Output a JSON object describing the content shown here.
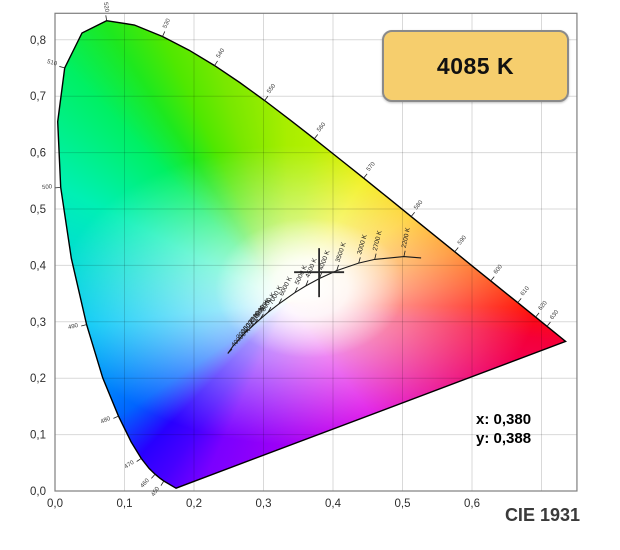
{
  "cct_box": {
    "label": "4085 K",
    "fill": "#F6CE6D",
    "border": "#8A8A8A"
  },
  "readout": {
    "x": "x: 0,380",
    "y": "y: 0,388"
  },
  "footer": {
    "title": "CIE 1931"
  },
  "colors": {
    "background": "#FFFFFF",
    "grid": "rgba(0,0,0,0.15)",
    "plot_border": "#7F7F7F",
    "axis_text": "#2E2E2E",
    "locus_outline": "#000000",
    "planckian_line": "#1A1A1A",
    "marker": "#2B2B2B",
    "gamut_conic_stops": [
      [
        0,
        "#A8EE00"
      ],
      [
        9,
        "#B4F000"
      ],
      [
        32,
        "#F0EE00"
      ],
      [
        55,
        "#FFC400"
      ],
      [
        73,
        "#FF7A00"
      ],
      [
        84,
        "#FF3C00"
      ],
      [
        91,
        "#FF1000"
      ],
      [
        98,
        "#F50038"
      ],
      [
        143,
        "#DC00E6"
      ],
      [
        205,
        "#7A00FF"
      ],
      [
        215,
        "#4600FF"
      ],
      [
        224,
        "#2800FF"
      ],
      [
        236,
        "#0064FF"
      ],
      [
        264,
        "#00C8F5"
      ],
      [
        297,
        "#00F0B4"
      ],
      [
        317,
        "#00F064"
      ],
      [
        327,
        "#1EE81E"
      ],
      [
        335,
        "#50E800"
      ],
      [
        344,
        "#78E800"
      ],
      [
        354,
        "#96EC00"
      ],
      [
        360,
        "#A8EE00"
      ]
    ]
  },
  "chart_data": {
    "type": "area",
    "subtype": "cie-1931-chromaticity-diagram",
    "title": "CIE 1931",
    "xlim": [
      0,
      0.751
    ],
    "ylim": [
      0,
      0.847
    ],
    "grid_step": 0.1,
    "x_tick_labels": [
      "0,0",
      "0,1",
      "0,2",
      "0,3",
      "0,4",
      "0,5",
      "0,6"
    ],
    "y_tick_labels": [
      "0,0",
      "0,1",
      "0,2",
      "0,3",
      "0,4",
      "0,5",
      "0,6",
      "0,7",
      "0,8"
    ],
    "x_tick_values": [
      0,
      0.1,
      0.2,
      0.3,
      0.4,
      0.5,
      0.6
    ],
    "y_tick_values": [
      0,
      0.1,
      0.2,
      0.3,
      0.4,
      0.5,
      0.6,
      0.7,
      0.8
    ],
    "marker": {
      "x": 0.38,
      "y": 0.388,
      "cct": "4085 K"
    },
    "spectral_locus": [
      [
        380,
        0.1741,
        0.005
      ],
      [
        450,
        0.1566,
        0.0177
      ],
      [
        455,
        0.151,
        0.0227
      ],
      [
        460,
        0.144,
        0.0297
      ],
      [
        465,
        0.1355,
        0.0399
      ],
      [
        470,
        0.1241,
        0.0578
      ],
      [
        475,
        0.1096,
        0.0868
      ],
      [
        480,
        0.0913,
        0.1327
      ],
      [
        485,
        0.0687,
        0.2007
      ],
      [
        490,
        0.0454,
        0.295
      ],
      [
        495,
        0.0235,
        0.4127
      ],
      [
        500,
        0.0082,
        0.5384
      ],
      [
        505,
        0.0039,
        0.6548
      ],
      [
        510,
        0.0139,
        0.7502
      ],
      [
        515,
        0.0389,
        0.812
      ],
      [
        520,
        0.0743,
        0.8338
      ],
      [
        525,
        0.1142,
        0.8262
      ],
      [
        530,
        0.1547,
        0.8059
      ],
      [
        535,
        0.1929,
        0.7816
      ],
      [
        540,
        0.2296,
        0.7543
      ],
      [
        545,
        0.2658,
        0.7243
      ],
      [
        550,
        0.3016,
        0.6923
      ],
      [
        555,
        0.3373,
        0.6589
      ],
      [
        560,
        0.3731,
        0.6245
      ],
      [
        565,
        0.4087,
        0.5896
      ],
      [
        570,
        0.4441,
        0.5547
      ],
      [
        575,
        0.4788,
        0.5202
      ],
      [
        580,
        0.5125,
        0.4866
      ],
      [
        585,
        0.5448,
        0.4544
      ],
      [
        590,
        0.5752,
        0.4242
      ],
      [
        595,
        0.6029,
        0.3965
      ],
      [
        600,
        0.627,
        0.3725
      ],
      [
        605,
        0.6482,
        0.3514
      ],
      [
        610,
        0.6658,
        0.334
      ],
      [
        615,
        0.6801,
        0.3197
      ],
      [
        620,
        0.6915,
        0.3083
      ],
      [
        625,
        0.7006,
        0.2993
      ],
      [
        630,
        0.7079,
        0.292
      ],
      [
        640,
        0.719,
        0.2809
      ],
      [
        650,
        0.726,
        0.274
      ],
      [
        700,
        0.7347,
        0.2653
      ]
    ],
    "wavelength_labels": [
      450,
      460,
      470,
      480,
      490,
      500,
      510,
      520,
      530,
      540,
      550,
      560,
      570,
      580,
      590,
      600,
      610,
      620,
      630
    ],
    "planckian_locus": [
      {
        "label": "",
        "x": 0.5267,
        "y": 0.4133
      },
      {
        "label": "2200 K",
        "x": 0.502,
        "y": 0.4156
      },
      {
        "label": "2700 K",
        "x": 0.4599,
        "y": 0.4106
      },
      {
        "label": "3000 K",
        "x": 0.4369,
        "y": 0.4041
      },
      {
        "label": "3500 K",
        "x": 0.4053,
        "y": 0.3907
      },
      {
        "label": "4000 K",
        "x": 0.3805,
        "y": 0.3768
      },
      {
        "label": "4500 K",
        "x": 0.3608,
        "y": 0.3636
      },
      {
        "label": "5000 K",
        "x": 0.3451,
        "y": 0.3516
      },
      {
        "label": "6000 K",
        "x": 0.3221,
        "y": 0.3318
      },
      {
        "label": "7000 K",
        "x": 0.3064,
        "y": 0.3166
      },
      {
        "label": "8000 K",
        "x": 0.2952,
        "y": 0.3048
      },
      {
        "label": "9000 K",
        "x": 0.2869,
        "y": 0.2956
      },
      {
        "label": "10000 K",
        "x": 0.2807,
        "y": 0.2884
      },
      {
        "label": "12000 K",
        "x": 0.272,
        "y": 0.2785
      },
      {
        "label": "15000 K",
        "x": 0.2637,
        "y": 0.2674
      },
      {
        "label": "20000 K",
        "x": 0.2565,
        "y": 0.2577
      },
      {
        "label": "40000 K",
        "x": 0.2487,
        "y": 0.2438
      }
    ]
  }
}
